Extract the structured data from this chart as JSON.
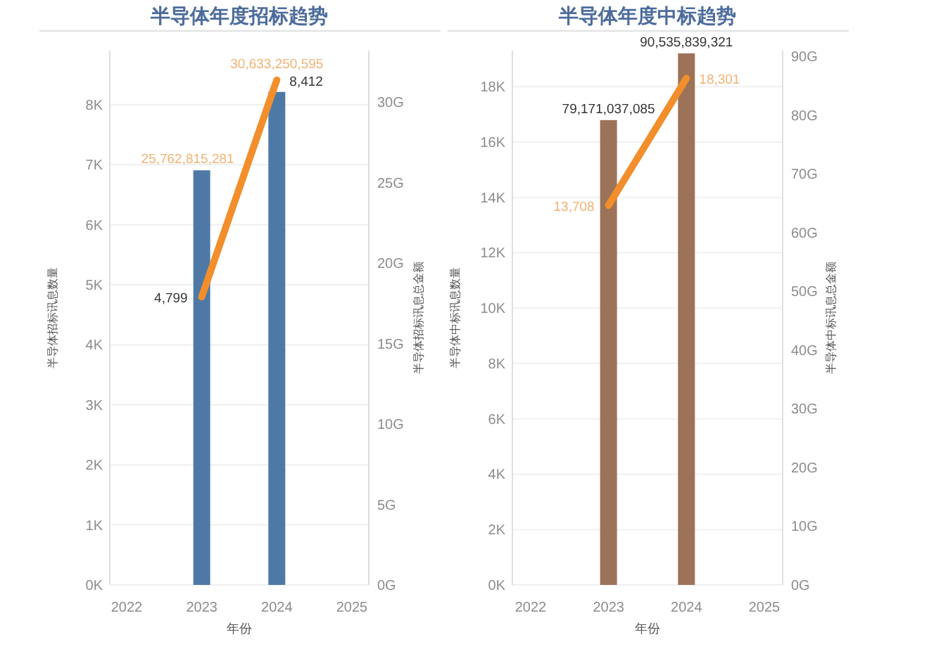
{
  "chart_data": [
    {
      "type": "bar",
      "title": "半导体年度招标趋势",
      "xlabel": "年份",
      "ylabel": "半导体招标讯息数量",
      "y2label": "半导体招标讯息总金额",
      "categories": [
        "2022",
        "2023",
        "2024",
        "2025"
      ],
      "series": [
        {
          "axis": "y2",
          "color": "#4e79a7",
          "values": [
            null,
            25.762815281,
            30.633250595,
            null
          ]
        },
        {
          "type": "line",
          "color": "#f28e2b",
          "values": [
            null,
            4799,
            8412,
            null
          ],
          "value_labels": [
            null,
            "4,799",
            "8,412",
            null
          ]
        }
      ],
      "annotations": [
        "25,762,815,281",
        "30,633,250,595"
      ],
      "ylim": [
        0,
        8900
      ],
      "yticks": [
        {
          "value": 0,
          "label": "0K"
        },
        {
          "value": 1000,
          "label": "1K"
        },
        {
          "value": 2000,
          "label": "2K"
        },
        {
          "value": 3000,
          "label": "3K"
        },
        {
          "value": 4000,
          "label": "4K"
        },
        {
          "value": 5000,
          "label": "5K"
        },
        {
          "value": 6000,
          "label": "6K"
        },
        {
          "value": 7000,
          "label": "7K"
        },
        {
          "value": 8000,
          "label": "8K"
        }
      ],
      "y2lim": [
        0,
        33.2
      ],
      "y2ticks": [
        {
          "value": 0,
          "label": "0G"
        },
        {
          "value": 5,
          "label": "5G"
        },
        {
          "value": 10,
          "label": "10G"
        },
        {
          "value": 15,
          "label": "15G"
        },
        {
          "value": 20,
          "label": "20G"
        },
        {
          "value": 25,
          "label": "25G"
        },
        {
          "value": 30,
          "label": "30G"
        }
      ],
      "grid": "y"
    },
    {
      "type": "bar",
      "title": "半导体年度中标趋势",
      "xlabel": "年份",
      "ylabel": "半导体中标讯息数量",
      "y2label": "半导体中标讯息总金额",
      "categories": [
        "2022",
        "2023",
        "2024",
        "2025"
      ],
      "series": [
        {
          "axis": "y2",
          "color": "#9c7358",
          "values": [
            null,
            79.171037085,
            90.535839321,
            null
          ]
        },
        {
          "type": "line",
          "color": "#f28e2b",
          "values": [
            null,
            13708,
            18301,
            null
          ],
          "value_labels": [
            null,
            "13,708",
            "18,301",
            null
          ]
        }
      ],
      "annotations": [
        "79,171,037,085",
        "90,535,839,321"
      ],
      "ylim": [
        0,
        19300
      ],
      "yticks": [
        {
          "value": 0,
          "label": "0K"
        },
        {
          "value": 2000,
          "label": "2K"
        },
        {
          "value": 4000,
          "label": "4K"
        },
        {
          "value": 6000,
          "label": "6K"
        },
        {
          "value": 8000,
          "label": "8K"
        },
        {
          "value": 10000,
          "label": "10K"
        },
        {
          "value": 12000,
          "label": "12K"
        },
        {
          "value": 14000,
          "label": "14K"
        },
        {
          "value": 16000,
          "label": "16K"
        },
        {
          "value": 18000,
          "label": "18K"
        }
      ],
      "y2lim": [
        0,
        91
      ],
      "y2ticks": [
        {
          "value": 0,
          "label": "0G"
        },
        {
          "value": 10,
          "label": "10G"
        },
        {
          "value": 20,
          "label": "20G"
        },
        {
          "value": 30,
          "label": "30G"
        },
        {
          "value": 40,
          "label": "40G"
        },
        {
          "value": 50,
          "label": "50G"
        },
        {
          "value": 60,
          "label": "60G"
        },
        {
          "value": 70,
          "label": "70G"
        },
        {
          "value": 80,
          "label": "80G"
        },
        {
          "value": 90,
          "label": "90G"
        }
      ],
      "grid": "y"
    }
  ]
}
